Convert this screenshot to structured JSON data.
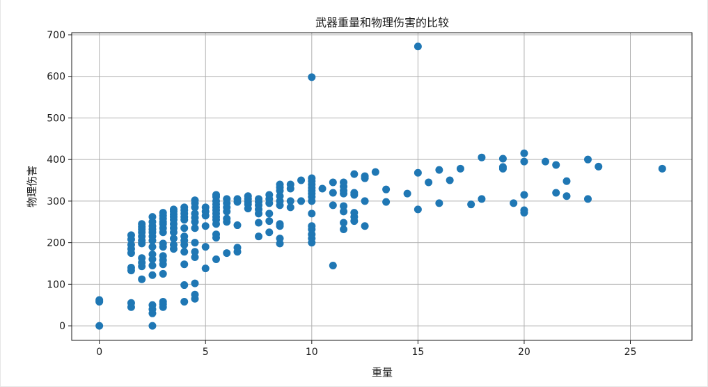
{
  "chart_data": {
    "type": "scatter",
    "title": "武器重量和物理伤害的比较",
    "xlabel": "重量",
    "ylabel": "物理伤害",
    "xlim": [
      -1.3,
      27.9
    ],
    "ylim": [
      -35,
      705
    ],
    "xticks": [
      0,
      5,
      10,
      15,
      20,
      25
    ],
    "yticks": [
      0,
      100,
      200,
      300,
      400,
      500,
      600,
      700
    ],
    "grid": true,
    "marker_color": "#1f77b4",
    "series": [
      {
        "points": [
          [
            0,
            0
          ],
          [
            0,
            58
          ],
          [
            0,
            62
          ],
          [
            1.5,
            45
          ],
          [
            1.5,
            55
          ],
          [
            1.5,
            133
          ],
          [
            1.5,
            140
          ],
          [
            1.5,
            175
          ],
          [
            1.5,
            185
          ],
          [
            1.5,
            195
          ],
          [
            1.5,
            208
          ],
          [
            1.5,
            218
          ],
          [
            2,
            112
          ],
          [
            2,
            143
          ],
          [
            2,
            152
          ],
          [
            2,
            163
          ],
          [
            2,
            198
          ],
          [
            2,
            205
          ],
          [
            2,
            215
          ],
          [
            2,
            225
          ],
          [
            2,
            232
          ],
          [
            2,
            238
          ],
          [
            2,
            245
          ],
          [
            2.5,
            0
          ],
          [
            2.5,
            30
          ],
          [
            2.5,
            40
          ],
          [
            2.5,
            50
          ],
          [
            2.5,
            122
          ],
          [
            2.5,
            145
          ],
          [
            2.5,
            160
          ],
          [
            2.5,
            172
          ],
          [
            2.5,
            190
          ],
          [
            2.5,
            205
          ],
          [
            2.5,
            215
          ],
          [
            2.5,
            225
          ],
          [
            2.5,
            232
          ],
          [
            2.5,
            240
          ],
          [
            2.5,
            250
          ],
          [
            2.5,
            262
          ],
          [
            3,
            45
          ],
          [
            3,
            52
          ],
          [
            3,
            58
          ],
          [
            3,
            125
          ],
          [
            3,
            148
          ],
          [
            3,
            158
          ],
          [
            3,
            168
          ],
          [
            3,
            190
          ],
          [
            3,
            198
          ],
          [
            3,
            225
          ],
          [
            3,
            235
          ],
          [
            3,
            245
          ],
          [
            3,
            250
          ],
          [
            3,
            258
          ],
          [
            3,
            265
          ],
          [
            3,
            272
          ],
          [
            3.5,
            185
          ],
          [
            3.5,
            195
          ],
          [
            3.5,
            210
          ],
          [
            3.5,
            225
          ],
          [
            3.5,
            235
          ],
          [
            3.5,
            245
          ],
          [
            3.5,
            255
          ],
          [
            3.5,
            262
          ],
          [
            3.5,
            268
          ],
          [
            3.5,
            275
          ],
          [
            3.5,
            280
          ],
          [
            4,
            58
          ],
          [
            4,
            98
          ],
          [
            4,
            148
          ],
          [
            4,
            178
          ],
          [
            4,
            195
          ],
          [
            4,
            205
          ],
          [
            4,
            215
          ],
          [
            4,
            235
          ],
          [
            4,
            255
          ],
          [
            4,
            262
          ],
          [
            4,
            270
          ],
          [
            4,
            278
          ],
          [
            4,
            285
          ],
          [
            4.5,
            65
          ],
          [
            4.5,
            75
          ],
          [
            4.5,
            102
          ],
          [
            4.5,
            165
          ],
          [
            4.5,
            178
          ],
          [
            4.5,
            200
          ],
          [
            4.5,
            235
          ],
          [
            4.5,
            250
          ],
          [
            4.5,
            260
          ],
          [
            4.5,
            270
          ],
          [
            4.5,
            285
          ],
          [
            4.5,
            295
          ],
          [
            4.5,
            302
          ],
          [
            5,
            138
          ],
          [
            5,
            190
          ],
          [
            5,
            240
          ],
          [
            5,
            265
          ],
          [
            5,
            275
          ],
          [
            5,
            285
          ],
          [
            5.5,
            160
          ],
          [
            5.5,
            212
          ],
          [
            5.5,
            220
          ],
          [
            5.5,
            245
          ],
          [
            5.5,
            255
          ],
          [
            5.5,
            262
          ],
          [
            5.5,
            270
          ],
          [
            5.5,
            278
          ],
          [
            5.5,
            285
          ],
          [
            5.5,
            292
          ],
          [
            5.5,
            300
          ],
          [
            5.5,
            310
          ],
          [
            5.5,
            315
          ],
          [
            6,
            175
          ],
          [
            6,
            250
          ],
          [
            6,
            258
          ],
          [
            6,
            275
          ],
          [
            6,
            285
          ],
          [
            6,
            295
          ],
          [
            6,
            305
          ],
          [
            6.5,
            178
          ],
          [
            6.5,
            188
          ],
          [
            6.5,
            242
          ],
          [
            6.5,
            298
          ],
          [
            6.5,
            305
          ],
          [
            7,
            282
          ],
          [
            7,
            292
          ],
          [
            7,
            298
          ],
          [
            7,
            305
          ],
          [
            7,
            312
          ],
          [
            7.5,
            215
          ],
          [
            7.5,
            248
          ],
          [
            7.5,
            270
          ],
          [
            7.5,
            280
          ],
          [
            7.5,
            290
          ],
          [
            7.5,
            298
          ],
          [
            7.5,
            305
          ],
          [
            8,
            225
          ],
          [
            8,
            252
          ],
          [
            8,
            270
          ],
          [
            8,
            295
          ],
          [
            8,
            305
          ],
          [
            8,
            315
          ],
          [
            8.5,
            198
          ],
          [
            8.5,
            210
          ],
          [
            8.5,
            240
          ],
          [
            8.5,
            245
          ],
          [
            8.5,
            290
          ],
          [
            8.5,
            300
          ],
          [
            8.5,
            312
          ],
          [
            8.5,
            325
          ],
          [
            8.5,
            333
          ],
          [
            8.5,
            340
          ],
          [
            9,
            285
          ],
          [
            9,
            300
          ],
          [
            9,
            330
          ],
          [
            9,
            340
          ],
          [
            9.5,
            300
          ],
          [
            9.5,
            350
          ],
          [
            10,
            200
          ],
          [
            10,
            210
          ],
          [
            10,
            220
          ],
          [
            10,
            232
          ],
          [
            10,
            240
          ],
          [
            10,
            270
          ],
          [
            10,
            300
          ],
          [
            10,
            310
          ],
          [
            10,
            318
          ],
          [
            10,
            325
          ],
          [
            10,
            332
          ],
          [
            10,
            340
          ],
          [
            10,
            348
          ],
          [
            10,
            355
          ],
          [
            10,
            598
          ],
          [
            10.5,
            330
          ],
          [
            11,
            145
          ],
          [
            11,
            290
          ],
          [
            11,
            320
          ],
          [
            11,
            345
          ],
          [
            11.5,
            232
          ],
          [
            11.5,
            248
          ],
          [
            11.5,
            275
          ],
          [
            11.5,
            288
          ],
          [
            11.5,
            318
          ],
          [
            11.5,
            325
          ],
          [
            11.5,
            335
          ],
          [
            11.5,
            345
          ],
          [
            12,
            252
          ],
          [
            12,
            262
          ],
          [
            12,
            272
          ],
          [
            12,
            315
          ],
          [
            12,
            320
          ],
          [
            12,
            365
          ],
          [
            12.5,
            240
          ],
          [
            12.5,
            300
          ],
          [
            12.5,
            355
          ],
          [
            12.5,
            360
          ],
          [
            13,
            370
          ],
          [
            13.5,
            298
          ],
          [
            13.5,
            328
          ],
          [
            14.5,
            318
          ],
          [
            15,
            280
          ],
          [
            15,
            368
          ],
          [
            15,
            672
          ],
          [
            15.5,
            345
          ],
          [
            16,
            295
          ],
          [
            16,
            375
          ],
          [
            16.5,
            350
          ],
          [
            17,
            378
          ],
          [
            17.5,
            292
          ],
          [
            18,
            305
          ],
          [
            18,
            405
          ],
          [
            19,
            378
          ],
          [
            19,
            382
          ],
          [
            19,
            402
          ],
          [
            19.5,
            295
          ],
          [
            20,
            272
          ],
          [
            20,
            278
          ],
          [
            20,
            315
          ],
          [
            20,
            395
          ],
          [
            20,
            415
          ],
          [
            21,
            395
          ],
          [
            21.5,
            320
          ],
          [
            21.5,
            387
          ],
          [
            22,
            312
          ],
          [
            22,
            348
          ],
          [
            23,
            305
          ],
          [
            23,
            400
          ],
          [
            23.5,
            383
          ],
          [
            26.5,
            378
          ]
        ]
      }
    ]
  }
}
